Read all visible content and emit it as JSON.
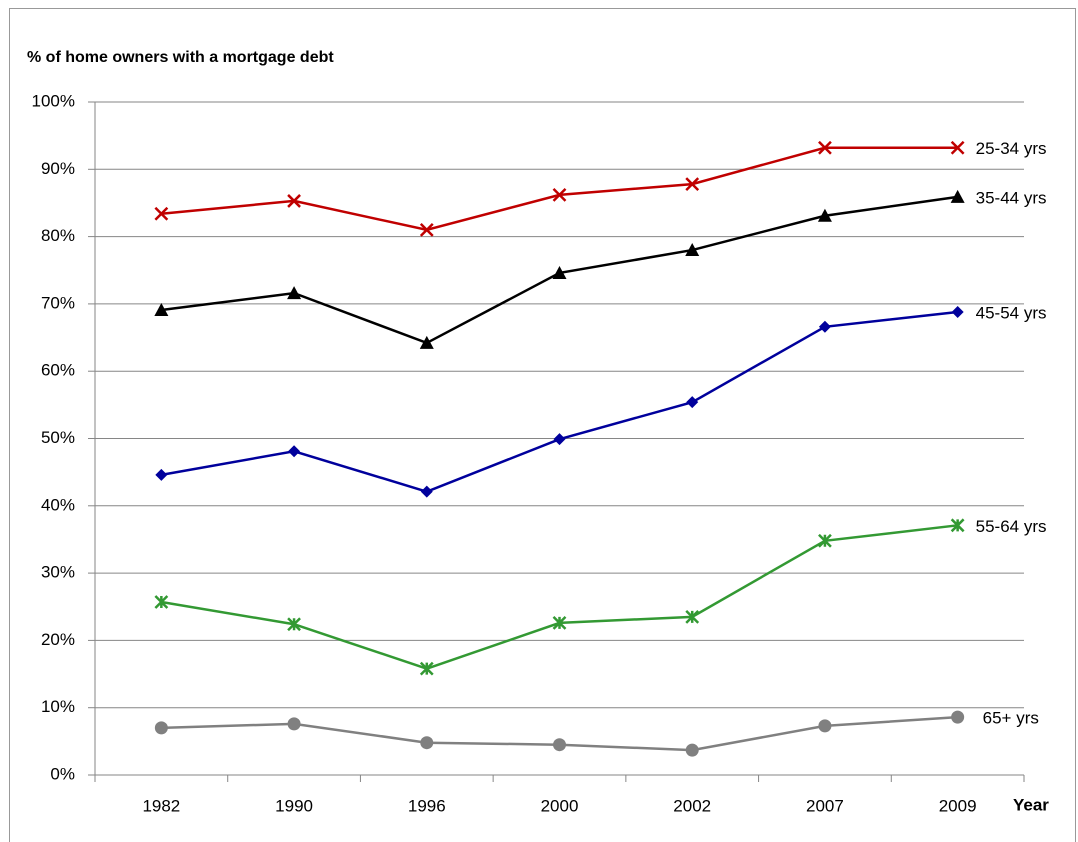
{
  "chart_data": {
    "type": "line",
    "title": "% of home owners with a mortgage debt",
    "x_label": "Year",
    "categories": [
      "1982",
      "1990",
      "1996",
      "2000",
      "2002",
      "2007",
      "2009"
    ],
    "series": [
      {
        "name": "25-34 yrs",
        "color": "#c00000",
        "marker": "x",
        "values": [
          83.4,
          85.3,
          81.0,
          86.2,
          87.8,
          93.2,
          93.2
        ]
      },
      {
        "name": "35-44 yrs",
        "color": "#000000",
        "marker": "triangle",
        "values": [
          69.1,
          71.6,
          64.2,
          74.6,
          78.0,
          83.1,
          85.9
        ]
      },
      {
        "name": "45-54 yrs",
        "color": "#00009c",
        "marker": "diamond",
        "values": [
          44.6,
          48.1,
          42.1,
          49.9,
          55.4,
          66.6,
          68.8
        ]
      },
      {
        "name": "55-64 yrs",
        "color": "#339933",
        "marker": "star",
        "values": [
          25.7,
          22.4,
          15.8,
          22.6,
          23.5,
          34.8,
          37.1
        ]
      },
      {
        "name": "65+ yrs",
        "color": "#808080",
        "marker": "circle",
        "values": [
          7.0,
          7.6,
          4.8,
          4.5,
          3.7,
          7.3,
          8.6
        ]
      }
    ],
    "ylim": [
      0,
      100
    ],
    "yticks": [
      {
        "value": 0,
        "label": "0%"
      },
      {
        "value": 10,
        "label": "10%"
      },
      {
        "value": 20,
        "label": "20%"
      },
      {
        "value": 30,
        "label": "30%"
      },
      {
        "value": 40,
        "label": "40%"
      },
      {
        "value": 50,
        "label": "50%"
      },
      {
        "value": 60,
        "label": "60%"
      },
      {
        "value": 70,
        "label": "70%"
      },
      {
        "value": 80,
        "label": "80%"
      },
      {
        "value": 90,
        "label": "90%"
      },
      {
        "value": 100,
        "label": "100%"
      }
    ],
    "grid": true
  }
}
